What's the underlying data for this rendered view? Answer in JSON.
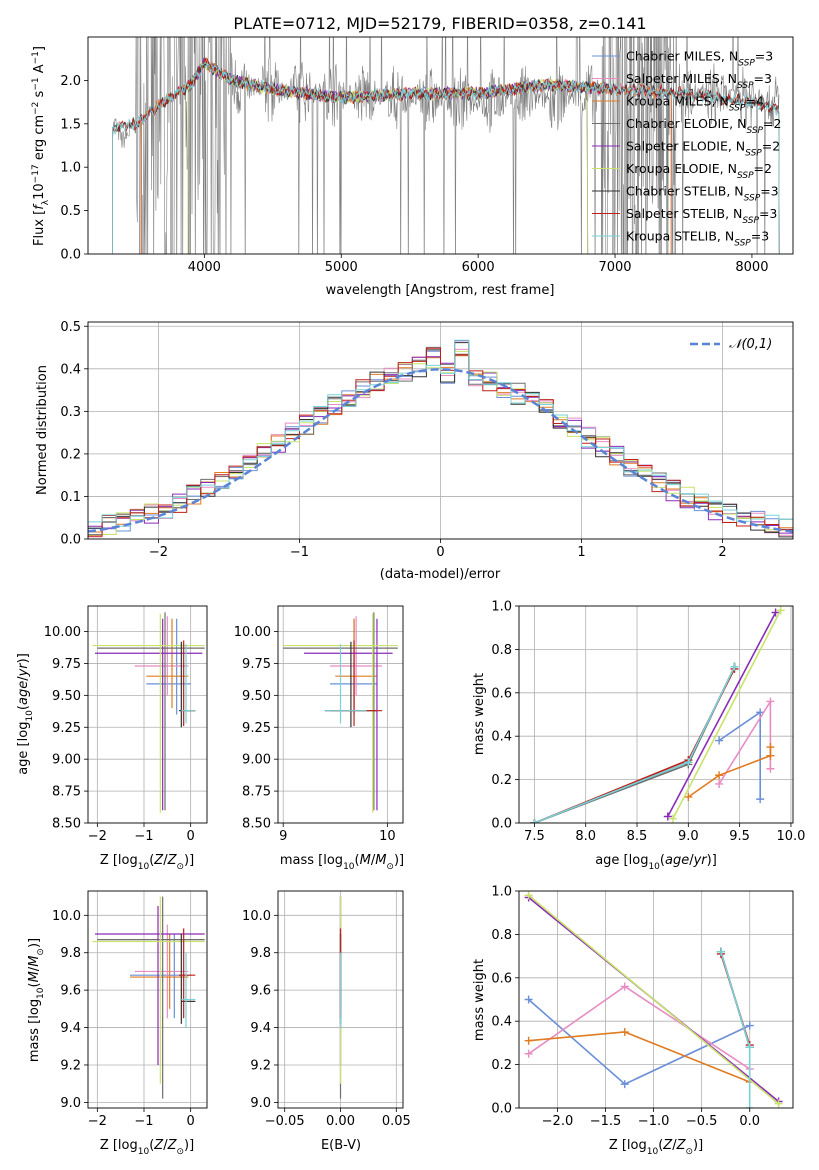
{
  "figure": {
    "title": "PLATE=0712, MJD=52179, FIBERID=0358, z=0.141"
  },
  "models": [
    {
      "name": "Chabrier MILES",
      "nssp": "3",
      "color": "#6a8fd8"
    },
    {
      "name": "Salpeter MILES",
      "nssp": "3",
      "color": "#e88cc4"
    },
    {
      "name": "Kroupa MILES",
      "nssp": "4",
      "color": "#e07b22"
    },
    {
      "name": "Chabrier ELODIE",
      "nssp": "2",
      "color": "#6f6f6f"
    },
    {
      "name": "Salpeter ELODIE",
      "nssp": "2",
      "color": "#8a2bb8"
    },
    {
      "name": "Kroupa ELODIE",
      "nssp": "2",
      "color": "#c8e36a"
    },
    {
      "name": "Chabrier STELIB",
      "nssp": "3",
      "color": "#333333"
    },
    {
      "name": "Salpeter STELIB",
      "nssp": "3",
      "color": "#c0201a"
    },
    {
      "name": "Kroupa STELIB",
      "nssp": "3",
      "color": "#78d2d8"
    }
  ],
  "chart_data": [
    {
      "type": "line",
      "id": "spectrum",
      "xlabel": "wavelength [Angstrom, rest frame]",
      "ylabel": "Flux [f_λ 10^-17 erg cm^-2 s^-1 A^-1]",
      "xlim": [
        3150,
        8300
      ],
      "ylim": [
        0,
        2.5
      ],
      "xticks": [
        4000,
        5000,
        6000,
        7000,
        8000
      ],
      "yticks": [
        0.0,
        0.5,
        1.0,
        1.5,
        2.0
      ],
      "legend": "top-right",
      "observed_spectrum": {
        "color": "#808080",
        "x": [
          3330,
          3350,
          3400,
          3500,
          3600,
          3700,
          3800,
          3900,
          4000,
          4200,
          4500,
          5000,
          5500,
          6000,
          6500,
          7000,
          7500,
          8000,
          8200
        ],
        "y": [
          1.45,
          1.5,
          1.3,
          1.5,
          1.55,
          1.8,
          1.9,
          2.0,
          2.1,
          1.95,
          1.9,
          1.85,
          1.8,
          1.75,
          1.8,
          1.85,
          1.85,
          1.8,
          1.7
        ]
      },
      "model_coverage": {
        "MILES": [
          3540,
          7410
        ],
        "ELODIE": [
          3880,
          6800
        ],
        "STELIB": [
          3330,
          8200
        ]
      },
      "model_continuum": {
        "x": [
          3330,
          3500,
          3700,
          3900,
          4000,
          4200,
          4500,
          5000,
          5500,
          6000,
          6500,
          7000,
          7500,
          8000,
          8200
        ],
        "y": [
          1.45,
          1.5,
          1.75,
          1.95,
          2.2,
          2.0,
          1.9,
          1.8,
          1.85,
          1.85,
          1.95,
          1.9,
          1.85,
          1.75,
          1.65
        ]
      }
    },
    {
      "type": "line",
      "id": "residuals",
      "xlabel": "(data-model)/error",
      "ylabel": "Normed distribution",
      "xlim": [
        -2.5,
        2.5
      ],
      "ylim": [
        0,
        0.51
      ],
      "xticks": [
        -2,
        -1,
        0,
        1,
        2
      ],
      "yticks": [
        0.0,
        0.1,
        0.2,
        0.3,
        0.4,
        0.5
      ],
      "grid": true,
      "legend": "top-right",
      "reference": {
        "name": "𝒩(0,1)",
        "color": "#5b84d6",
        "mu": 0,
        "sigma": 1
      },
      "bin_width": 0.1
    },
    {
      "type": "scatter",
      "id": "age-vs-Z",
      "xlabel": "Z [log10(Z/Z⊙)]",
      "ylabel": "age [log10(age/yr)]",
      "xlim": [
        -2.2,
        0.35
      ],
      "ylim": [
        8.5,
        10.2
      ],
      "xticks": [
        -2,
        -1,
        0
      ],
      "yticks": [
        8.5,
        8.75,
        9.0,
        9.25,
        9.5,
        9.75,
        10.0
      ],
      "grid": true,
      "points": [
        {
          "model": 0,
          "x": -0.3,
          "y": 9.59,
          "xlo": -0.95,
          "xhi": 0.0,
          "ylo": 9.35,
          "yhi": 10.1
        },
        {
          "model": 1,
          "x": -0.5,
          "y": 9.73,
          "xlo": -1.2,
          "xhi": -0.05,
          "ylo": 9.5,
          "yhi": 10.12
        },
        {
          "model": 2,
          "x": -0.4,
          "y": 9.65,
          "xlo": -0.95,
          "xhi": -0.05,
          "ylo": 9.4,
          "yhi": 10.1
        },
        {
          "model": 3,
          "x": -0.55,
          "y": 9.87,
          "xlo": -2.0,
          "xhi": 0.3,
          "ylo": 8.6,
          "yhi": 10.15
        },
        {
          "model": 4,
          "x": -0.6,
          "y": 9.83,
          "xlo": -2.05,
          "xhi": 0.25,
          "ylo": 8.6,
          "yhi": 10.1
        },
        {
          "model": 5,
          "x": -0.65,
          "y": 9.89,
          "xlo": -2.1,
          "xhi": 0.3,
          "ylo": 8.58,
          "yhi": 10.14
        },
        {
          "model": 6,
          "x": -0.2,
          "y": 9.38,
          "xlo": -0.25,
          "xhi": 0.1,
          "ylo": 9.25,
          "yhi": 9.92
        },
        {
          "model": 7,
          "x": -0.15,
          "y": 9.38,
          "xlo": -0.2,
          "xhi": 0.1,
          "ylo": 9.26,
          "yhi": 9.93
        },
        {
          "model": 8,
          "x": -0.1,
          "y": 9.38,
          "xlo": -0.2,
          "xhi": 0.1,
          "ylo": 9.28,
          "yhi": 9.9
        }
      ]
    },
    {
      "type": "scatter",
      "id": "age-vs-mass",
      "xlabel": "mass [log10(M/M⊙)]",
      "ylabel": "",
      "xlim": [
        8.95,
        10.15
      ],
      "ylim": [
        8.5,
        10.2
      ],
      "xticks": [
        9,
        10
      ],
      "yticks": [
        8.5,
        8.75,
        9.0,
        9.25,
        9.5,
        9.75,
        10.0
      ],
      "grid": true,
      "points": [
        {
          "model": 0,
          "x": 9.68,
          "y": 9.59,
          "xlo": 9.45,
          "xhi": 9.9,
          "ylo": 9.35,
          "yhi": 10.1
        },
        {
          "model": 1,
          "x": 9.7,
          "y": 9.73,
          "xlo": 9.45,
          "xhi": 9.95,
          "ylo": 9.5,
          "yhi": 10.12
        },
        {
          "model": 2,
          "x": 9.68,
          "y": 9.65,
          "xlo": 9.5,
          "xhi": 9.9,
          "ylo": 9.4,
          "yhi": 10.1
        },
        {
          "model": 3,
          "x": 9.87,
          "y": 9.87,
          "xlo": 9.0,
          "xhi": 10.1,
          "ylo": 8.6,
          "yhi": 10.15
        },
        {
          "model": 4,
          "x": 9.9,
          "y": 9.83,
          "xlo": 9.2,
          "xhi": 10.05,
          "ylo": 8.6,
          "yhi": 10.1
        },
        {
          "model": 5,
          "x": 9.86,
          "y": 9.89,
          "xlo": 9.0,
          "xhi": 10.1,
          "ylo": 8.58,
          "yhi": 10.14
        },
        {
          "model": 6,
          "x": 9.65,
          "y": 9.38,
          "xlo": 9.4,
          "xhi": 9.9,
          "ylo": 9.25,
          "yhi": 9.92
        },
        {
          "model": 7,
          "x": 9.68,
          "y": 9.38,
          "xlo": 9.45,
          "xhi": 9.95,
          "ylo": 9.26,
          "yhi": 9.93
        },
        {
          "model": 8,
          "x": 9.55,
          "y": 9.38,
          "xlo": 9.4,
          "xhi": 9.8,
          "ylo": 9.28,
          "yhi": 9.9
        }
      ]
    },
    {
      "type": "line",
      "id": "mass-weight-vs-age",
      "xlabel": "age [log10(age/yr)]",
      "ylabel": "mass weight",
      "xlim": [
        7.35,
        10.02
      ],
      "ylim": [
        0,
        1.0
      ],
      "xticks": [
        7.5,
        8.0,
        8.5,
        9.0,
        9.5,
        10.0
      ],
      "yticks": [
        0.0,
        0.2,
        0.4,
        0.6,
        0.8,
        1.0
      ],
      "grid": true,
      "series": [
        {
          "model": 0,
          "x": [
            9.3,
            9.7,
            9.7
          ],
          "y": [
            0.38,
            0.51,
            0.11
          ]
        },
        {
          "model": 1,
          "x": [
            9.3,
            9.8,
            9.8
          ],
          "y": [
            0.18,
            0.56,
            0.25
          ]
        },
        {
          "model": 2,
          "x": [
            9.0,
            9.3,
            9.8,
            9.8
          ],
          "y": [
            0.12,
            0.22,
            0.31,
            0.35
          ]
        },
        {
          "model": 3,
          "x": [
            7.5,
            9.0,
            9.45
          ],
          "y": [
            0.0,
            0.27,
            0.72
          ]
        },
        {
          "model": 4,
          "x": [
            8.8,
            9.85
          ],
          "y": [
            0.03,
            0.97
          ]
        },
        {
          "model": 5,
          "x": [
            8.85,
            9.9
          ],
          "y": [
            0.02,
            0.98
          ]
        },
        {
          "model": 6,
          "x": [
            7.5,
            9.0,
            9.45
          ],
          "y": [
            0.0,
            0.28,
            0.72
          ]
        },
        {
          "model": 7,
          "x": [
            7.5,
            9.0,
            9.45
          ],
          "y": [
            0.0,
            0.29,
            0.71
          ]
        },
        {
          "model": 8,
          "x": [
            7.5,
            9.0,
            9.45
          ],
          "y": [
            0.0,
            0.28,
            0.72
          ]
        }
      ]
    },
    {
      "type": "scatter",
      "id": "mass-vs-Z",
      "xlabel": "Z [log10(Z/Z⊙)]",
      "ylabel": "mass [log10(M/M⊙)]",
      "xlim": [
        -2.2,
        0.35
      ],
      "ylim": [
        8.97,
        10.13
      ],
      "xticks": [
        -2,
        -1,
        0
      ],
      "yticks": [
        9.0,
        9.2,
        9.4,
        9.6,
        9.8,
        10.0
      ],
      "grid": true,
      "points": [
        {
          "model": 0,
          "x": -0.35,
          "y": 9.68,
          "xlo": -1.3,
          "xhi": 0.0,
          "ylo": 9.45,
          "yhi": 9.9
        },
        {
          "model": 1,
          "x": -0.5,
          "y": 9.7,
          "xlo": -1.2,
          "xhi": -0.05,
          "ylo": 9.45,
          "yhi": 9.95
        },
        {
          "model": 2,
          "x": -0.45,
          "y": 9.67,
          "xlo": -1.3,
          "xhi": -0.05,
          "ylo": 9.5,
          "yhi": 9.9
        },
        {
          "model": 3,
          "x": -0.6,
          "y": 9.87,
          "xlo": -2.0,
          "xhi": 0.3,
          "ylo": 9.02,
          "yhi": 10.1
        },
        {
          "model": 4,
          "x": -0.7,
          "y": 9.9,
          "xlo": -2.05,
          "xhi": 0.3,
          "ylo": 9.2,
          "yhi": 10.05
        },
        {
          "model": 5,
          "x": -0.65,
          "y": 9.86,
          "xlo": -2.1,
          "xhi": 0.3,
          "ylo": 9.1,
          "yhi": 10.1
        },
        {
          "model": 6,
          "x": -0.2,
          "y": 9.54,
          "xlo": -0.2,
          "xhi": 0.1,
          "ylo": 9.42,
          "yhi": 9.9
        },
        {
          "model": 7,
          "x": -0.15,
          "y": 9.68,
          "xlo": -0.25,
          "xhi": 0.1,
          "ylo": 9.45,
          "yhi": 9.93
        },
        {
          "model": 8,
          "x": -0.1,
          "y": 9.55,
          "xlo": -0.2,
          "xhi": 0.1,
          "ylo": 9.4,
          "yhi": 9.8
        }
      ]
    },
    {
      "type": "scatter",
      "id": "mass-vs-ebv",
      "xlabel": "E(B-V)",
      "ylabel": "",
      "xlim": [
        -0.056,
        0.056
      ],
      "ylim": [
        8.97,
        10.13
      ],
      "xticks": [
        -0.05,
        0.0,
        0.05
      ],
      "yticks": [
        9.0,
        9.2,
        9.4,
        9.6,
        9.8,
        10.0
      ],
      "grid": true,
      "points": [
        {
          "model": 0,
          "x": 0.0,
          "y": 9.68,
          "ylo": 9.45,
          "yhi": 9.9
        },
        {
          "model": 1,
          "x": 0.0,
          "y": 9.7,
          "ylo": 9.45,
          "yhi": 9.95
        },
        {
          "model": 2,
          "x": 0.0,
          "y": 9.67,
          "ylo": 9.5,
          "yhi": 9.9
        },
        {
          "model": 3,
          "x": 0.0,
          "y": 9.87,
          "ylo": 9.02,
          "yhi": 10.1
        },
        {
          "model": 4,
          "x": 0.0,
          "y": 9.9,
          "ylo": 9.2,
          "yhi": 10.1
        },
        {
          "model": 5,
          "x": 0.0,
          "y": 9.86,
          "ylo": 9.1,
          "yhi": 10.1
        },
        {
          "model": 6,
          "x": 0.0,
          "y": 9.54,
          "ylo": 9.42,
          "yhi": 9.9
        },
        {
          "model": 7,
          "x": 0.0,
          "y": 9.68,
          "ylo": 9.45,
          "yhi": 9.93
        },
        {
          "model": 8,
          "x": 0.0,
          "y": 9.55,
          "ylo": 9.4,
          "yhi": 9.8
        }
      ]
    },
    {
      "type": "line",
      "id": "mass-weight-vs-Z",
      "xlabel": "Z [log10(Z/Z⊙)]",
      "ylabel": "mass weight",
      "xlim": [
        -2.4,
        0.45
      ],
      "ylim": [
        0,
        1.0
      ],
      "xticks": [
        -2.0,
        -1.5,
        -1.0,
        -0.5,
        0.0
      ],
      "yticks": [
        0.0,
        0.2,
        0.4,
        0.6,
        0.8,
        1.0
      ],
      "grid": true,
      "series": [
        {
          "model": 0,
          "x": [
            -2.3,
            -1.3,
            0.0
          ],
          "y": [
            0.5,
            0.11,
            0.38
          ]
        },
        {
          "model": 1,
          "x": [
            -2.3,
            -1.3,
            0.0
          ],
          "y": [
            0.25,
            0.56,
            0.18
          ]
        },
        {
          "model": 2,
          "x": [
            -2.3,
            -1.3,
            0.0
          ],
          "y": [
            0.31,
            0.35,
            0.12
          ]
        },
        {
          "model": 3,
          "x": [
            -0.3,
            0.0
          ],
          "y": [
            0.72,
            0.28
          ]
        },
        {
          "model": 4,
          "x": [
            -2.3,
            0.3
          ],
          "y": [
            0.97,
            0.03
          ]
        },
        {
          "model": 5,
          "x": [
            -2.3,
            0.3
          ],
          "y": [
            0.98,
            0.02
          ]
        },
        {
          "model": 6,
          "x": [
            -0.3,
            0.0
          ],
          "y": [
            0.72,
            0.28
          ]
        },
        {
          "model": 7,
          "x": [
            -0.3,
            0.0
          ],
          "y": [
            0.71,
            0.29
          ]
        },
        {
          "model": 8,
          "x": [
            -0.3,
            0.0,
            0.0
          ],
          "y": [
            0.72,
            0.28,
            0.0
          ]
        }
      ]
    }
  ]
}
